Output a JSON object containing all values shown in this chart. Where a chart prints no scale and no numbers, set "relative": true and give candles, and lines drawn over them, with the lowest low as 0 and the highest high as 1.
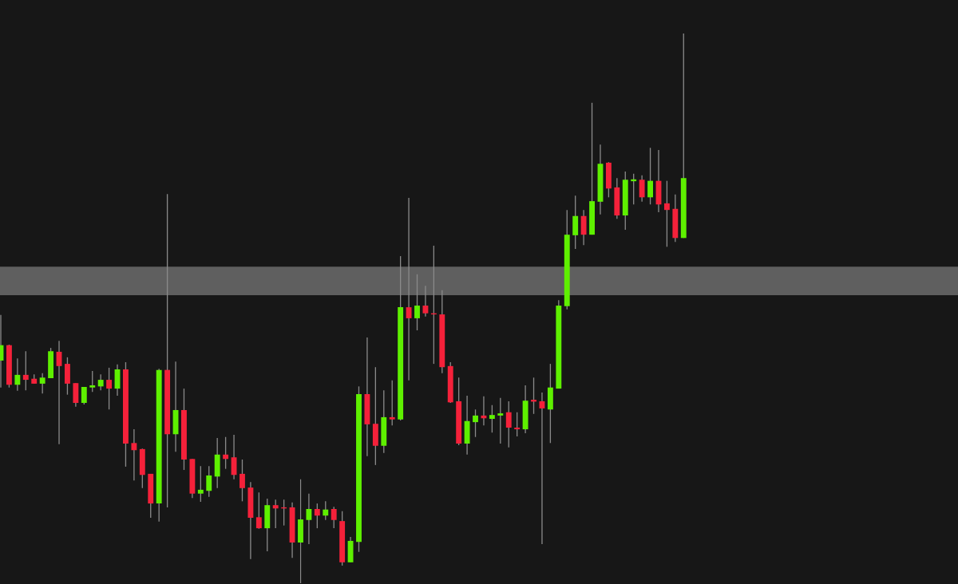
{
  "chart_data": {
    "type": "candlestick",
    "relative": true,
    "categories": [
      null,
      null,
      null,
      null,
      null,
      null,
      null,
      null,
      null,
      null,
      null,
      null,
      null,
      null,
      null,
      null,
      null,
      null,
      null,
      null,
      null,
      null,
      null,
      null,
      null,
      null,
      null,
      null,
      null,
      null,
      null,
      null,
      null,
      null,
      null,
      null,
      null,
      null,
      null,
      null,
      null,
      null,
      null,
      null,
      null,
      null,
      null,
      null,
      null,
      null,
      null,
      null,
      null,
      null,
      null,
      null,
      null,
      null,
      null,
      null,
      null,
      null,
      null,
      null,
      null,
      null,
      null,
      null,
      null,
      null,
      null,
      null,
      null,
      null,
      null,
      null,
      null,
      null,
      null,
      null,
      null,
      null,
      null
    ],
    "colors": [
      "#5ef000",
      "#f5213a",
      "#5ef000",
      "#f5213a",
      "#f5213a",
      "#5ef000",
      "#5ef000",
      "#f5213a",
      "#f5213a",
      "#f5213a",
      "#5ef000",
      "#5ef000",
      "#5ef000",
      "#f5213a",
      "#5ef000",
      "#f5213a",
      "#f5213a",
      "#f5213a",
      "#f5213a",
      "#5ef000",
      "#f5213a",
      "#5ef000",
      "#f5213a",
      "#f5213a",
      "#5ef000",
      "#5ef000",
      "#5ef000",
      "#f5213a",
      "#f5213a",
      "#f5213a",
      "#f5213a",
      "#f5213a",
      "#5ef000",
      "#f5213a",
      "#f5213a",
      "#f5213a",
      "#5ef000",
      "#5ef000",
      "#f5213a",
      "#5ef000",
      "#f5213a",
      "#f5213a",
      "#5ef000",
      "#5ef000",
      "#f5213a",
      "#f5213a",
      "#5ef000",
      "#f5213a",
      "#5ef000",
      "#f5213a",
      "#5ef000",
      "#f5213a",
      "#f5213a",
      "#f5213a",
      "#f5213a",
      "#f5213a",
      "#5ef000",
      "#5ef000",
      "#f5213a",
      "#5ef000",
      "#5ef000",
      "#f5213a",
      "#f5213a",
      "#5ef000",
      "#f5213a",
      "#f5213a",
      "#5ef000",
      "#5ef000",
      "#5ef000",
      "#5ef000",
      "#f5213a",
      "#5ef000",
      "#5ef000",
      "#f5213a",
      "#f5213a",
      "#5ef000",
      "#5ef000",
      "#f5213a",
      "#5ef000",
      "#f5213a",
      "#f5213a",
      "#f5213a",
      "#5ef000"
    ],
    "bands": [
      {
        "axis": "y",
        "from": 0.524,
        "to": 0.576,
        "color": "#5f5f5f"
      }
    ],
    "ohlc": [
      [
        0.405,
        0.488,
        0.356,
        0.433
      ],
      [
        0.433,
        0.434,
        0.356,
        0.361
      ],
      [
        0.361,
        0.409,
        0.35,
        0.379
      ],
      [
        0.379,
        0.422,
        0.351,
        0.37
      ],
      [
        0.372,
        0.38,
        0.363,
        0.363
      ],
      [
        0.363,
        0.382,
        0.345,
        0.374
      ],
      [
        0.373,
        0.428,
        0.373,
        0.422
      ],
      [
        0.421,
        0.441,
        0.253,
        0.395
      ],
      [
        0.399,
        0.411,
        0.343,
        0.363
      ],
      [
        0.364,
        0.364,
        0.321,
        0.328
      ],
      [
        0.328,
        0.357,
        0.325,
        0.357
      ],
      [
        0.356,
        0.386,
        0.348,
        0.36
      ],
      [
        0.358,
        0.38,
        0.351,
        0.37
      ],
      [
        0.37,
        0.392,
        0.316,
        0.354
      ],
      [
        0.354,
        0.398,
        0.341,
        0.389
      ],
      [
        0.389,
        0.402,
        0.212,
        0.254
      ],
      [
        0.255,
        0.28,
        0.187,
        0.242
      ],
      [
        0.244,
        0.245,
        0.173,
        0.197
      ],
      [
        0.199,
        0.199,
        0.119,
        0.145
      ],
      [
        0.145,
        0.39,
        0.112,
        0.388
      ],
      [
        0.388,
        0.708,
        0.138,
        0.271
      ],
      [
        0.271,
        0.403,
        0.239,
        0.315
      ],
      [
        0.315,
        0.354,
        0.206,
        0.225
      ],
      [
        0.226,
        0.226,
        0.155,
        0.163
      ],
      [
        0.163,
        0.213,
        0.148,
        0.17
      ],
      [
        0.168,
        0.213,
        0.157,
        0.196
      ],
      [
        0.194,
        0.264,
        0.173,
        0.234
      ],
      [
        0.234,
        0.266,
        0.208,
        0.226
      ],
      [
        0.229,
        0.27,
        0.189,
        0.197
      ],
      [
        0.199,
        0.225,
        0.149,
        0.173
      ],
      [
        0.174,
        0.184,
        0.044,
        0.119
      ],
      [
        0.12,
        0.165,
        0.099,
        0.1
      ],
      [
        0.1,
        0.154,
        0.058,
        0.142
      ],
      [
        0.142,
        0.152,
        0.1,
        0.136
      ],
      [
        0.138,
        0.152,
        0.105,
        0.136
      ],
      [
        0.138,
        0.147,
        0.046,
        0.074
      ],
      [
        0.074,
        0.189,
        0.0,
        0.116
      ],
      [
        0.115,
        0.163,
        0.071,
        0.135
      ],
      [
        0.135,
        0.145,
        0.1,
        0.123
      ],
      [
        0.123,
        0.149,
        0.115,
        0.134
      ],
      [
        0.135,
        0.139,
        0.1,
        0.115
      ],
      [
        0.113,
        0.131,
        0.032,
        0.038
      ],
      [
        0.038,
        0.084,
        0.038,
        0.077
      ],
      [
        0.075,
        0.358,
        0.057,
        0.344
      ],
      [
        0.344,
        0.447,
        0.231,
        0.289
      ],
      [
        0.29,
        0.393,
        0.215,
        0.25
      ],
      [
        0.25,
        0.351,
        0.237,
        0.302
      ],
      [
        0.302,
        0.369,
        0.287,
        0.298
      ],
      [
        0.298,
        0.595,
        0.296,
        0.502
      ],
      [
        0.502,
        0.701,
        0.369,
        0.482
      ],
      [
        0.482,
        0.562,
        0.46,
        0.505
      ],
      [
        0.505,
        0.541,
        0.485,
        0.491
      ],
      [
        0.491,
        0.614,
        0.399,
        0.489
      ],
      [
        0.489,
        0.533,
        0.382,
        0.393
      ],
      [
        0.395,
        0.402,
        0.328,
        0.329
      ],
      [
        0.331,
        0.374,
        0.251,
        0.254
      ],
      [
        0.254,
        0.341,
        0.234,
        0.295
      ],
      [
        0.293,
        0.316,
        0.266,
        0.305
      ],
      [
        0.305,
        0.34,
        0.287,
        0.3
      ],
      [
        0.299,
        0.324,
        0.274,
        0.306
      ],
      [
        0.305,
        0.337,
        0.254,
        0.309
      ],
      [
        0.311,
        0.331,
        0.247,
        0.283
      ],
      [
        0.283,
        0.311,
        0.267,
        0.28
      ],
      [
        0.28,
        0.36,
        0.273,
        0.332
      ],
      [
        0.332,
        0.374,
        0.308,
        0.331
      ],
      [
        0.331,
        0.347,
        0.071,
        0.318
      ],
      [
        0.316,
        0.399,
        0.255,
        0.356
      ],
      [
        0.354,
        0.515,
        0.354,
        0.505
      ],
      [
        0.504,
        0.679,
        0.498,
        0.634
      ],
      [
        0.633,
        0.705,
        0.608,
        0.668
      ],
      [
        0.668,
        0.679,
        0.615,
        0.634
      ],
      [
        0.634,
        0.874,
        0.634,
        0.695
      ],
      [
        0.694,
        0.798,
        0.671,
        0.763
      ],
      [
        0.765,
        0.766,
        0.702,
        0.718
      ],
      [
        0.72,
        0.737,
        0.663,
        0.669
      ],
      [
        0.669,
        0.749,
        0.643,
        0.734
      ],
      [
        0.733,
        0.745,
        0.689,
        0.734
      ],
      [
        0.734,
        0.742,
        0.694,
        0.702
      ],
      [
        0.702,
        0.792,
        0.689,
        0.732
      ],
      [
        0.732,
        0.788,
        0.675,
        0.689
      ],
      [
        0.691,
        0.732,
        0.612,
        0.679
      ],
      [
        0.681,
        0.707,
        0.621,
        0.628
      ],
      [
        0.628,
        1.0,
        0.628,
        0.737
      ]
    ]
  }
}
